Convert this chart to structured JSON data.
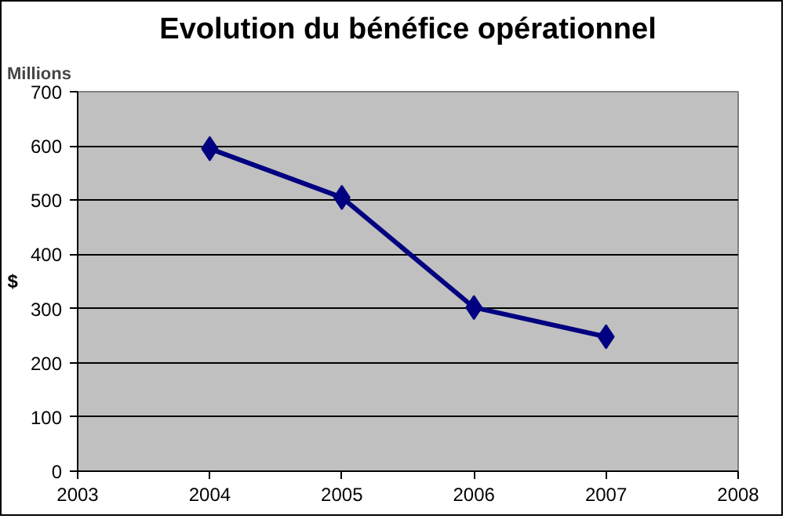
{
  "chart_data": {
    "type": "line",
    "title": "Evolution du bénéfice opérationnel",
    "ylabel": "$",
    "annotations": [
      "Millions"
    ],
    "x": [
      2004,
      2005,
      2006,
      2007
    ],
    "series": [
      {
        "color": "#000080",
        "values": [
          595,
          505,
          302,
          248
        ]
      }
    ],
    "xlim": [
      2003,
      2008
    ],
    "xticks": [
      2003,
      2004,
      2005,
      2006,
      2007,
      2008
    ],
    "ylim": [
      0,
      700
    ],
    "yticks": [
      0,
      100,
      200,
      300,
      400,
      500,
      600,
      700
    ],
    "grid": "y",
    "marker": "diamond",
    "line_style": "solid"
  }
}
